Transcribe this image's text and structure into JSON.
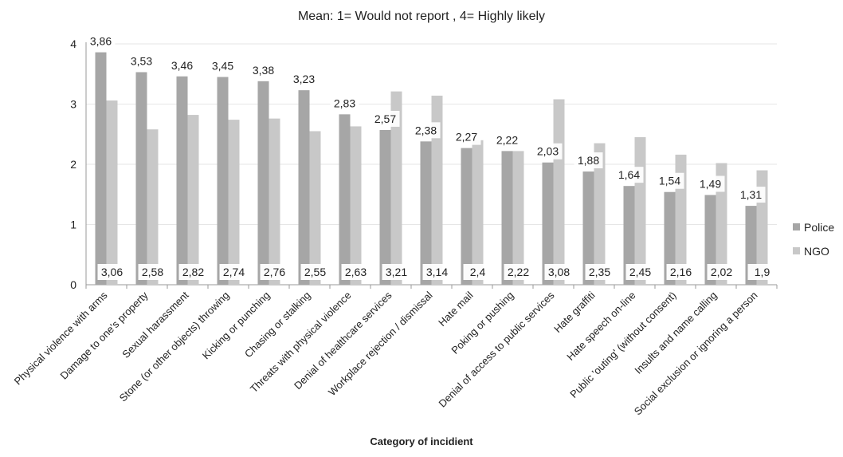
{
  "chart_data": {
    "type": "bar",
    "title": "Mean:  1= Would not report , 4= Highly likely",
    "xlabel": "Category of incidient",
    "ylabel": "",
    "ylim": [
      0,
      4
    ],
    "yticks": [
      0,
      1,
      2,
      3,
      4
    ],
    "grid": true,
    "legend_position": "right",
    "categories": [
      "Physical violence with arms",
      "Damage to one's property",
      "Sexual harassment",
      "Stone (or other objects) throwing",
      "Kicking or punching",
      "Chasing or stalking",
      "Threats with physical violence",
      "Denial of healthcare services",
      "Workplace rejection / dismissal",
      "Hate mail",
      "Poking or pushing",
      "Denial of access to public services",
      "Hate graffiti",
      "Hate speech on-line",
      "Public 'outing' (without consent)",
      "Insults and name calling",
      "Social exclusion or ignoring a person"
    ],
    "series": [
      {
        "name": "Police",
        "color": "#a6a6a6",
        "values": [
          3.86,
          3.53,
          3.46,
          3.45,
          3.38,
          3.23,
          2.83,
          2.57,
          2.38,
          2.27,
          2.22,
          2.03,
          1.88,
          1.64,
          1.54,
          1.49,
          1.31
        ],
        "labels": [
          "3,86",
          "3,53",
          "3,46",
          "3,45",
          "3,38",
          "3,23",
          "2,83",
          "2,57",
          "2,38",
          "2,27",
          "2,22",
          "2,03",
          "1,88",
          "1,64",
          "1,54",
          "1,49",
          "1,31"
        ]
      },
      {
        "name": "NGO",
        "color": "#c8c8c8",
        "values": [
          3.06,
          2.58,
          2.82,
          2.74,
          2.76,
          2.55,
          2.63,
          3.21,
          3.14,
          2.4,
          2.22,
          3.08,
          2.35,
          2.45,
          2.16,
          2.02,
          1.9
        ],
        "labels": [
          "3,06",
          "2,58",
          "2,82",
          "2,74",
          "2,76",
          "2,55",
          "2,63",
          "3,21",
          "3,14",
          "2,4",
          "2,22",
          "3,08",
          "2,35",
          "2,45",
          "2,16",
          "2,02",
          "1,9"
        ]
      }
    ]
  }
}
